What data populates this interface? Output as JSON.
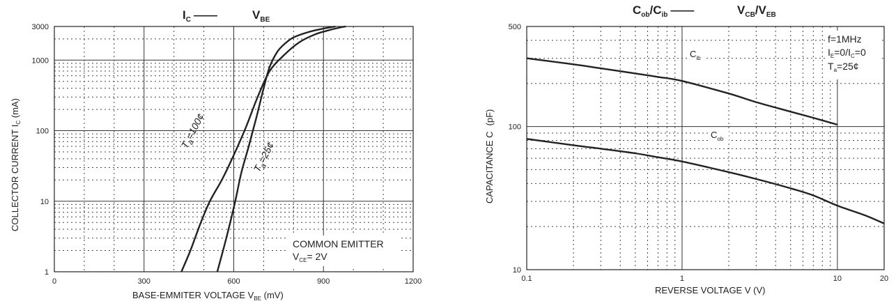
{
  "chart_data": [
    {
      "type": "line",
      "title": "I",
      "title_sub": "C",
      "title_dash": "——",
      "title2": "V",
      "title2_sub": "BE",
      "xlabel": "BASE-EMMITER VOLTAGE V",
      "xlabel_sub": "BE",
      "xlabel_unit": " (mV)",
      "ylabel": "COLLECTOR CURRENT   I",
      "ylabel_sub": "C",
      "ylabel_unit": "  (mA)",
      "x_scale": "linear",
      "y_scale": "log",
      "xlim": [
        0,
        1200
      ],
      "ylim": [
        1,
        3000
      ],
      "x_ticks": [
        "0",
        "300",
        "600",
        "900",
        "1200"
      ],
      "y_ticks": [
        "1",
        "10",
        "100",
        "1000",
        "3000"
      ],
      "annotation": "COMMON EMITTER",
      "annotation2": "V",
      "annotation2_sub": "CE",
      "annotation2_rest": "= 2V",
      "series": [
        {
          "name": "T",
          "name_sub": "a",
          "name_rest": "=100¢",
          "x": [
            425,
            455,
            490,
            520,
            560,
            600,
            640,
            680,
            720,
            770,
            820,
            870,
            910,
            955,
            975
          ],
          "y": [
            1,
            2,
            5,
            10,
            20,
            45,
            110,
            300,
            700,
            1200,
            1800,
            2300,
            2600,
            2900,
            3000
          ]
        },
        {
          "name": "T",
          "name_sub": "a",
          "name_rest": "=25¢",
          "x": [
            545,
            575,
            605,
            625,
            650,
            675,
            700,
            720,
            745,
            770,
            800,
            850,
            900,
            940
          ],
          "y": [
            1,
            3,
            10,
            25,
            60,
            150,
            400,
            800,
            1300,
            1700,
            2100,
            2500,
            2800,
            3000
          ]
        }
      ]
    },
    {
      "type": "line",
      "title": "C",
      "title_sub": "ob",
      "title_mid": "/C",
      "title_sub2": "ib",
      "title_dash": "——",
      "title2": "V",
      "title2_sub": "CB",
      "title2_mid": "/V",
      "title2_sub2": "EB",
      "xlabel": "REVERSE  VOLTAGE   V   (V)",
      "ylabel": "CAPACITANCE C",
      "ylabel_unit": "(pF)",
      "x_scale": "log",
      "y_scale": "log",
      "xlim": [
        0.1,
        20
      ],
      "ylim": [
        10,
        500
      ],
      "x_ticks": [
        "0.1",
        "1",
        "10",
        "20"
      ],
      "y_ticks": [
        "10",
        "100",
        "500"
      ],
      "legend_line1": "f=1MHz",
      "legend_line2_a": "I",
      "legend_line2_a_sub": "E",
      "legend_line2_b": "=0/I",
      "legend_line2_b_sub": "C",
      "legend_line2_c": "=0",
      "legend_line3": "T",
      "legend_line3_sub": "a",
      "legend_line3_rest": "=25¢",
      "series": [
        {
          "name": "C",
          "name_sub": "ib",
          "x": [
            0.1,
            0.2,
            0.3,
            0.5,
            0.7,
            1,
            2,
            3,
            5,
            7,
            10
          ],
          "y": [
            300,
            272,
            255,
            235,
            222,
            208,
            170,
            148,
            127,
            115,
            103
          ]
        },
        {
          "name": "C",
          "name_sub": "ob",
          "x": [
            0.1,
            0.2,
            0.3,
            0.5,
            0.7,
            1,
            2,
            3,
            5,
            7,
            10,
            15,
            20
          ],
          "y": [
            82,
            74,
            70,
            65,
            61,
            57,
            48,
            43,
            37,
            33,
            28,
            24,
            21
          ]
        }
      ]
    }
  ]
}
